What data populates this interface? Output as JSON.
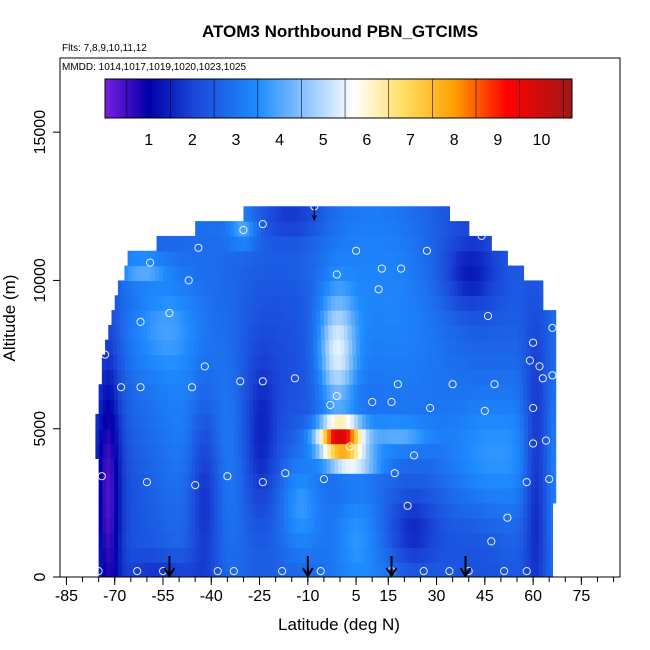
{
  "chart_data": {
    "type": "heatmap",
    "title": "ATOM3 Northbound PBN_GTCIMS",
    "subtitle_flights": "Flts: 7,8,9,10,11,12",
    "subtitle_dates": "MMDD: 1014,1017,1019,1020,1023,1025",
    "xlabel": "Latitude (deg N)",
    "ylabel": "Altitude (m)",
    "xlim": [
      -87,
      87
    ],
    "ylim": [
      0,
      17500
    ],
    "x_ticks": [
      -85,
      -70,
      -55,
      -40,
      -25,
      -10,
      5,
      15,
      30,
      45,
      60,
      75
    ],
    "x_tick_labels": [
      "-85",
      "-70",
      "-55",
      "-40",
      "-25",
      "-10",
      "5",
      "15",
      "30",
      "45",
      "60",
      "75"
    ],
    "y_ticks": [
      0,
      5000,
      10000,
      15000
    ],
    "y_tick_labels": [
      "0",
      "5000",
      "10000",
      "15000"
    ],
    "colorbar": {
      "range": [
        0,
        10.7
      ],
      "tick_values": [
        1,
        2,
        3,
        4,
        5,
        6,
        7,
        8,
        9,
        10
      ],
      "tick_labels": [
        "1",
        "2",
        "3",
        "4",
        "5",
        "6",
        "7",
        "8",
        "9",
        "10"
      ],
      "colors": [
        "#7a1fe0",
        "#0000a8",
        "#1a44d6",
        "#1e8cff",
        "#ffffff",
        "#ffe066",
        "#ffa000",
        "#ff0000",
        "#a01818"
      ],
      "color_stops": [
        0,
        1,
        2,
        3.5,
        5.7,
        6.8,
        8,
        9.2,
        10.7
      ]
    },
    "altitude_bins_m": [
      0,
      500,
      1000,
      1500,
      2000,
      2500,
      3000,
      3500,
      4000,
      4500,
      5000,
      5500,
      6000,
      6500,
      7000,
      7500,
      8000,
      8500,
      9000,
      9500,
      10000,
      10500,
      11000,
      11500,
      12000,
      12500
    ],
    "latitude_extent_by_altitude": [
      [
        -75,
        66
      ],
      [
        -75,
        66
      ],
      [
        -75,
        66
      ],
      [
        -75,
        66
      ],
      [
        -75,
        66
      ],
      [
        -75,
        67
      ],
      [
        -75,
        67
      ],
      [
        -75,
        67
      ],
      [
        -76,
        67
      ],
      [
        -76,
        67
      ],
      [
        -76,
        67
      ],
      [
        -75,
        67
      ],
      [
        -75,
        67
      ],
      [
        -74,
        67
      ],
      [
        -74,
        67
      ],
      [
        -73,
        67
      ],
      [
        -72,
        67
      ],
      [
        -71,
        67
      ],
      [
        -70,
        63
      ],
      [
        -69,
        63
      ],
      [
        -67,
        57
      ],
      [
        -66,
        52
      ],
      [
        -57,
        47
      ],
      [
        -45,
        40
      ],
      [
        -30,
        34
      ]
    ],
    "flight_points": [
      [
        -75,
        200
      ],
      [
        -74,
        3400
      ],
      [
        -73,
        7500
      ],
      [
        -72,
        9600
      ],
      [
        -68,
        6400
      ],
      [
        -63,
        200
      ],
      [
        -62,
        6400
      ],
      [
        -62,
        8600
      ],
      [
        -60,
        3200
      ],
      [
        -59,
        10600
      ],
      [
        -55,
        200
      ],
      [
        -53,
        8900
      ],
      [
        -47,
        10000
      ],
      [
        -46,
        6400
      ],
      [
        -45,
        3100
      ],
      [
        -44,
        11100
      ],
      [
        -42,
        7100
      ],
      [
        -38,
        200
      ],
      [
        -35,
        3400
      ],
      [
        -33,
        200
      ],
      [
        -31,
        6600
      ],
      [
        -30,
        11700
      ],
      [
        -24,
        11900
      ],
      [
        -24,
        6600
      ],
      [
        -24,
        3200
      ],
      [
        -18,
        200
      ],
      [
        -17,
        3500
      ],
      [
        -14,
        6700
      ],
      [
        -8,
        12500
      ],
      [
        -6,
        200
      ],
      [
        -5,
        3300
      ],
      [
        -3,
        5800
      ],
      [
        -1,
        10200
      ],
      [
        -1,
        6100
      ],
      [
        3,
        4400
      ],
      [
        5,
        11000
      ],
      [
        10,
        5900
      ],
      [
        12,
        9700
      ],
      [
        13,
        10400
      ],
      [
        16,
        5900
      ],
      [
        16,
        200
      ],
      [
        17,
        3500
      ],
      [
        18,
        6500
      ],
      [
        19,
        10400
      ],
      [
        21,
        2400
      ],
      [
        23,
        4100
      ],
      [
        26,
        200
      ],
      [
        27,
        11000
      ],
      [
        28,
        5700
      ],
      [
        34,
        200
      ],
      [
        35,
        6500
      ],
      [
        40,
        200
      ],
      [
        44,
        11500
      ],
      [
        45,
        5600
      ],
      [
        46,
        8800
      ],
      [
        47,
        1200
      ],
      [
        48,
        6500
      ],
      [
        51,
        200
      ],
      [
        52,
        2000
      ],
      [
        58,
        200
      ],
      [
        58,
        3200
      ],
      [
        59,
        7300
      ],
      [
        60,
        4500
      ],
      [
        60,
        5700
      ],
      [
        60,
        7900
      ],
      [
        62,
        7100
      ],
      [
        63,
        6700
      ],
      [
        64,
        4600
      ],
      [
        65,
        3300
      ],
      [
        66,
        6800
      ],
      [
        66,
        8400
      ]
    ],
    "arrow_latitudes": [
      -53,
      -10,
      16,
      39
    ],
    "top_marker_latitude": -8
  }
}
